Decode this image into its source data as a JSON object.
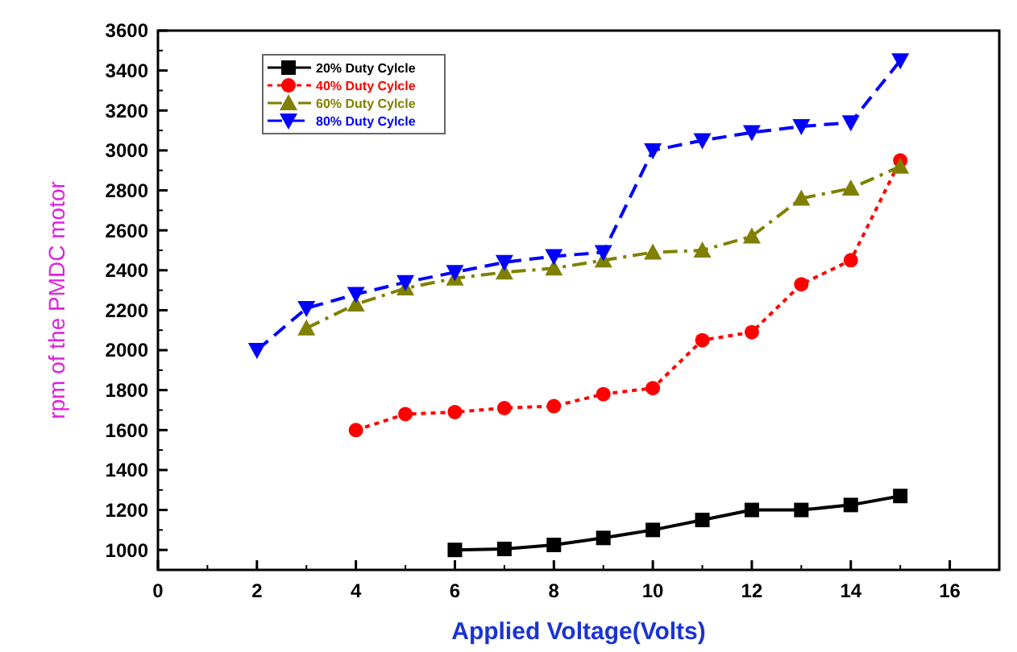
{
  "chart_data": {
    "type": "line",
    "xlabel": "Applied Voltage(Volts)",
    "ylabel": "rpm of the PMDC motor",
    "xlim": [
      0,
      17
    ],
    "xticks": [
      0,
      2,
      4,
      6,
      8,
      10,
      12,
      14,
      16
    ],
    "ylim": [
      900,
      3600
    ],
    "yticks": [
      1000,
      1200,
      1400,
      1600,
      1800,
      2000,
      2200,
      2400,
      2600,
      2800,
      3000,
      3200,
      3400,
      3600
    ],
    "grid": false,
    "legend": "top left",
    "series": [
      {
        "name": "20% Duty Cylcle",
        "color": "#000000",
        "marker": "square",
        "line_style": "solid",
        "x": [
          6,
          7,
          8,
          9,
          10,
          11,
          12,
          13,
          14,
          15
        ],
        "values": [
          1000,
          1005,
          1025,
          1060,
          1100,
          1150,
          1200,
          1200,
          1225,
          1270
        ]
      },
      {
        "name": "40% Duty Cylcle",
        "color": "#ff0000",
        "marker": "circle",
        "line_style": "dotted",
        "x": [
          4,
          5,
          6,
          7,
          8,
          9,
          10,
          11,
          12,
          13,
          14,
          15
        ],
        "values": [
          1600,
          1680,
          1690,
          1710,
          1720,
          1780,
          1810,
          2050,
          2090,
          2330,
          2450,
          2950
        ]
      },
      {
        "name": "60% Duty Cylcle",
        "color": "#808000",
        "marker": "triangle",
        "line_style": "dashdot",
        "x": [
          3,
          4,
          5,
          6,
          7,
          8,
          9,
          10,
          11,
          12,
          13,
          14,
          15
        ],
        "values": [
          2110,
          2230,
          2310,
          2360,
          2390,
          2410,
          2450,
          2490,
          2500,
          2570,
          2760,
          2810,
          2920
        ]
      },
      {
        "name": "80% Duty Cylcle",
        "color": "#0000ff",
        "marker": "triangle-down",
        "line_style": "dashed",
        "x": [
          2,
          3,
          4,
          5,
          6,
          7,
          8,
          9,
          10,
          11,
          12,
          13,
          14,
          15
        ],
        "values": [
          2000,
          2210,
          2280,
          2340,
          2390,
          2440,
          2470,
          2490,
          3000,
          3050,
          3090,
          3120,
          3140,
          3450
        ]
      }
    ]
  }
}
